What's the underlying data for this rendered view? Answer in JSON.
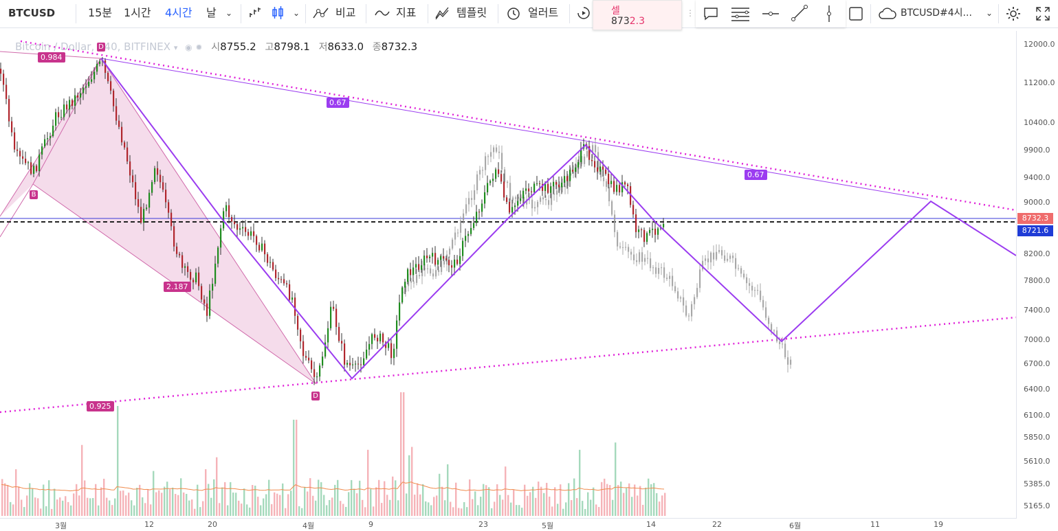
{
  "toolbar": {
    "symbol": "BTCUSD",
    "intervals": [
      "15분",
      "1시간",
      "4시간",
      "날"
    ],
    "compare_label": "비교",
    "indicators_label": "지표",
    "templates_label": "템플릿",
    "alert_label": "얼러트",
    "sell_label": "셀",
    "sell_price_head": "873",
    "sell_price_tail": "2.3",
    "layout_label": "BTCUSD#4시...",
    "icons": [
      "bar-style-icon",
      "candle-style-icon",
      "compare-icon",
      "indicators-icon",
      "templates-icon",
      "alert-icon",
      "replay-icon",
      "comment-icon",
      "text-lines-icon",
      "horizontal-line-icon",
      "trendline-icon",
      "vertical-line-icon",
      "rectangle-icon",
      "cloud-icon",
      "settings-icon",
      "fullscreen-icon"
    ]
  },
  "legend": {
    "title": "Bitcoin / Dollar, 240, BITFINEX",
    "open_key": "시",
    "open": "8755.2",
    "high_key": "고",
    "high": "8798.1",
    "low_key": "저",
    "low": "8633.0",
    "close_key": "종",
    "close": "8732.3"
  },
  "price_axis": {
    "ticks": [
      "12000.0",
      "11200.0",
      "10400.0",
      "9900.0",
      "9400.0",
      "9000.0",
      "8200.0",
      "7800.0",
      "7400.0",
      "7000.0",
      "6700.0",
      "6400.0",
      "6100.0",
      "5850.0",
      "5610.0",
      "5385.0",
      "5165.0"
    ],
    "current_price": "8732.3",
    "line_price": "8721.6"
  },
  "time_axis": {
    "ticks": [
      "3월",
      "12",
      "20",
      "4월",
      "9",
      "23",
      "5월",
      "14",
      "22",
      "6월",
      "11",
      "19"
    ]
  },
  "pattern": {
    "labels": [
      "0.984",
      "0.67",
      "0.67",
      "2.187",
      "0.925"
    ],
    "markers": [
      "D",
      "B",
      "D"
    ]
  },
  "colors": {
    "accent": "#2962ff",
    "up_candle": "#1e8c1e",
    "down_candle": "#b0262d",
    "pattern_fill": "#f3d6e8",
    "pattern_line": "#c8338c",
    "projection_line": "#9b3cf0",
    "dotted_channel": "#e020d8",
    "current_price_bg": "#ef6c6c",
    "line_price_bg": "#1f3cd6"
  }
}
